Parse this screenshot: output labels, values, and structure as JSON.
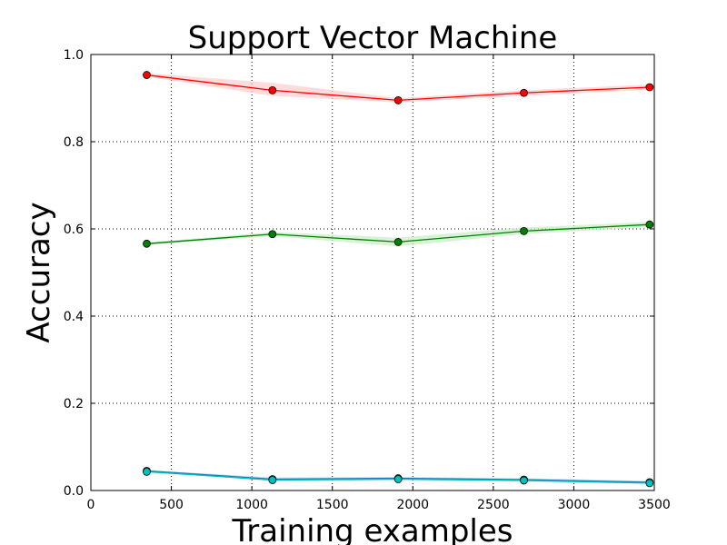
{
  "chart_data": {
    "type": "line",
    "title": "Support Vector Machine",
    "xlabel": "Training examples",
    "ylabel": "Accuracy",
    "xlim": [
      0,
      3500
    ],
    "ylim": [
      0.0,
      1.0
    ],
    "grid": true,
    "legend": "none",
    "x_ticks": [
      0,
      500,
      1000,
      1500,
      2000,
      2500,
      3000,
      3500
    ],
    "x_tick_labels": [
      "0",
      "500",
      "1000",
      "1500",
      "2000",
      "2500",
      "3000",
      "3500"
    ],
    "y_ticks": [
      0.0,
      0.2,
      0.4,
      0.6,
      0.8,
      1.0
    ],
    "y_tick_labels": [
      "0.0",
      "0.2",
      "0.4",
      "0.6",
      "0.8",
      "1.0"
    ],
    "x": [
      347,
      1128,
      1909,
      2690,
      3471
    ],
    "series": [
      {
        "color": "#ff0000",
        "band_color": "#ffcccc",
        "values": [
          0.953,
          0.918,
          0.895,
          0.912,
          0.925
        ],
        "band_upper": [
          0.957,
          0.935,
          0.9,
          0.918,
          0.931
        ],
        "band_lower": [
          0.949,
          0.905,
          0.89,
          0.905,
          0.919
        ]
      },
      {
        "color": "#008000",
        "band_color": "#c8ecc8",
        "values": [
          0.566,
          0.588,
          0.57,
          0.595,
          0.61
        ],
        "band_upper": [
          0.569,
          0.593,
          0.58,
          0.603,
          0.616
        ],
        "band_lower": [
          0.563,
          0.583,
          0.56,
          0.588,
          0.604
        ]
      },
      {
        "color": "#1f77b4",
        "marker_color": "#00bfbf",
        "band_color": "#a6d4f2",
        "values": [
          0.045,
          0.026,
          0.028,
          0.025,
          0.019
        ],
        "band_upper": [
          0.047,
          0.03,
          0.031,
          0.028,
          0.022
        ],
        "band_lower": [
          0.043,
          0.022,
          0.024,
          0.021,
          0.015
        ]
      },
      {
        "color": "#00bfbf",
        "marker_color": "#00bfbf",
        "values": [
          0.043,
          0.024,
          0.026,
          0.023,
          0.017
        ]
      }
    ]
  }
}
